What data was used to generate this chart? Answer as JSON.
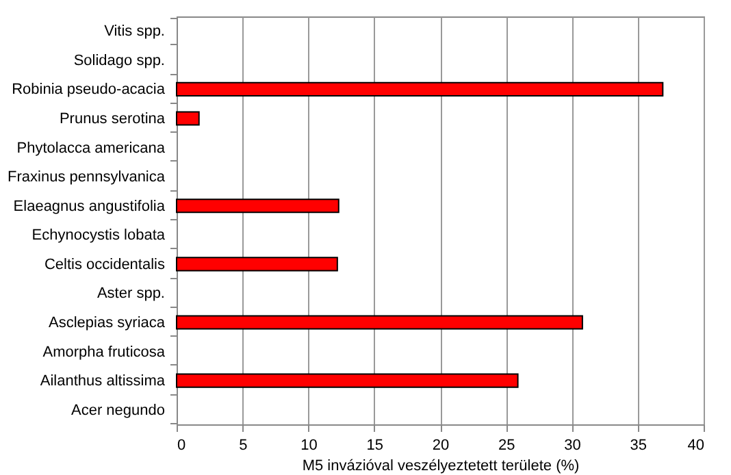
{
  "chart_data": {
    "type": "bar",
    "orientation": "horizontal",
    "xlabel": "M5 invázióval veszélyeztetett területe (%)",
    "categories": [
      "Vitis spp.",
      "Solidago spp.",
      "Robinia pseudo-acacia",
      "Prunus serotina",
      "Phytolacca americana",
      "Fraxinus pennsylvanica",
      "Elaeagnus angustifolia",
      "Echynocystis lobata",
      "Celtis occidentalis",
      "Aster spp.",
      "Asclepias syriaca",
      "Amorpha fruticosa",
      "Ailanthus altissima",
      "Acer negundo"
    ],
    "values": [
      null,
      null,
      36.9,
      1.7,
      null,
      null,
      12.3,
      null,
      12.2,
      null,
      30.8,
      null,
      25.9,
      null
    ],
    "color": "#ff0000",
    "xlim": [
      0,
      40
    ],
    "xticks": [
      0,
      5,
      10,
      15,
      20,
      25,
      30,
      35,
      40
    ],
    "grid": "x"
  }
}
